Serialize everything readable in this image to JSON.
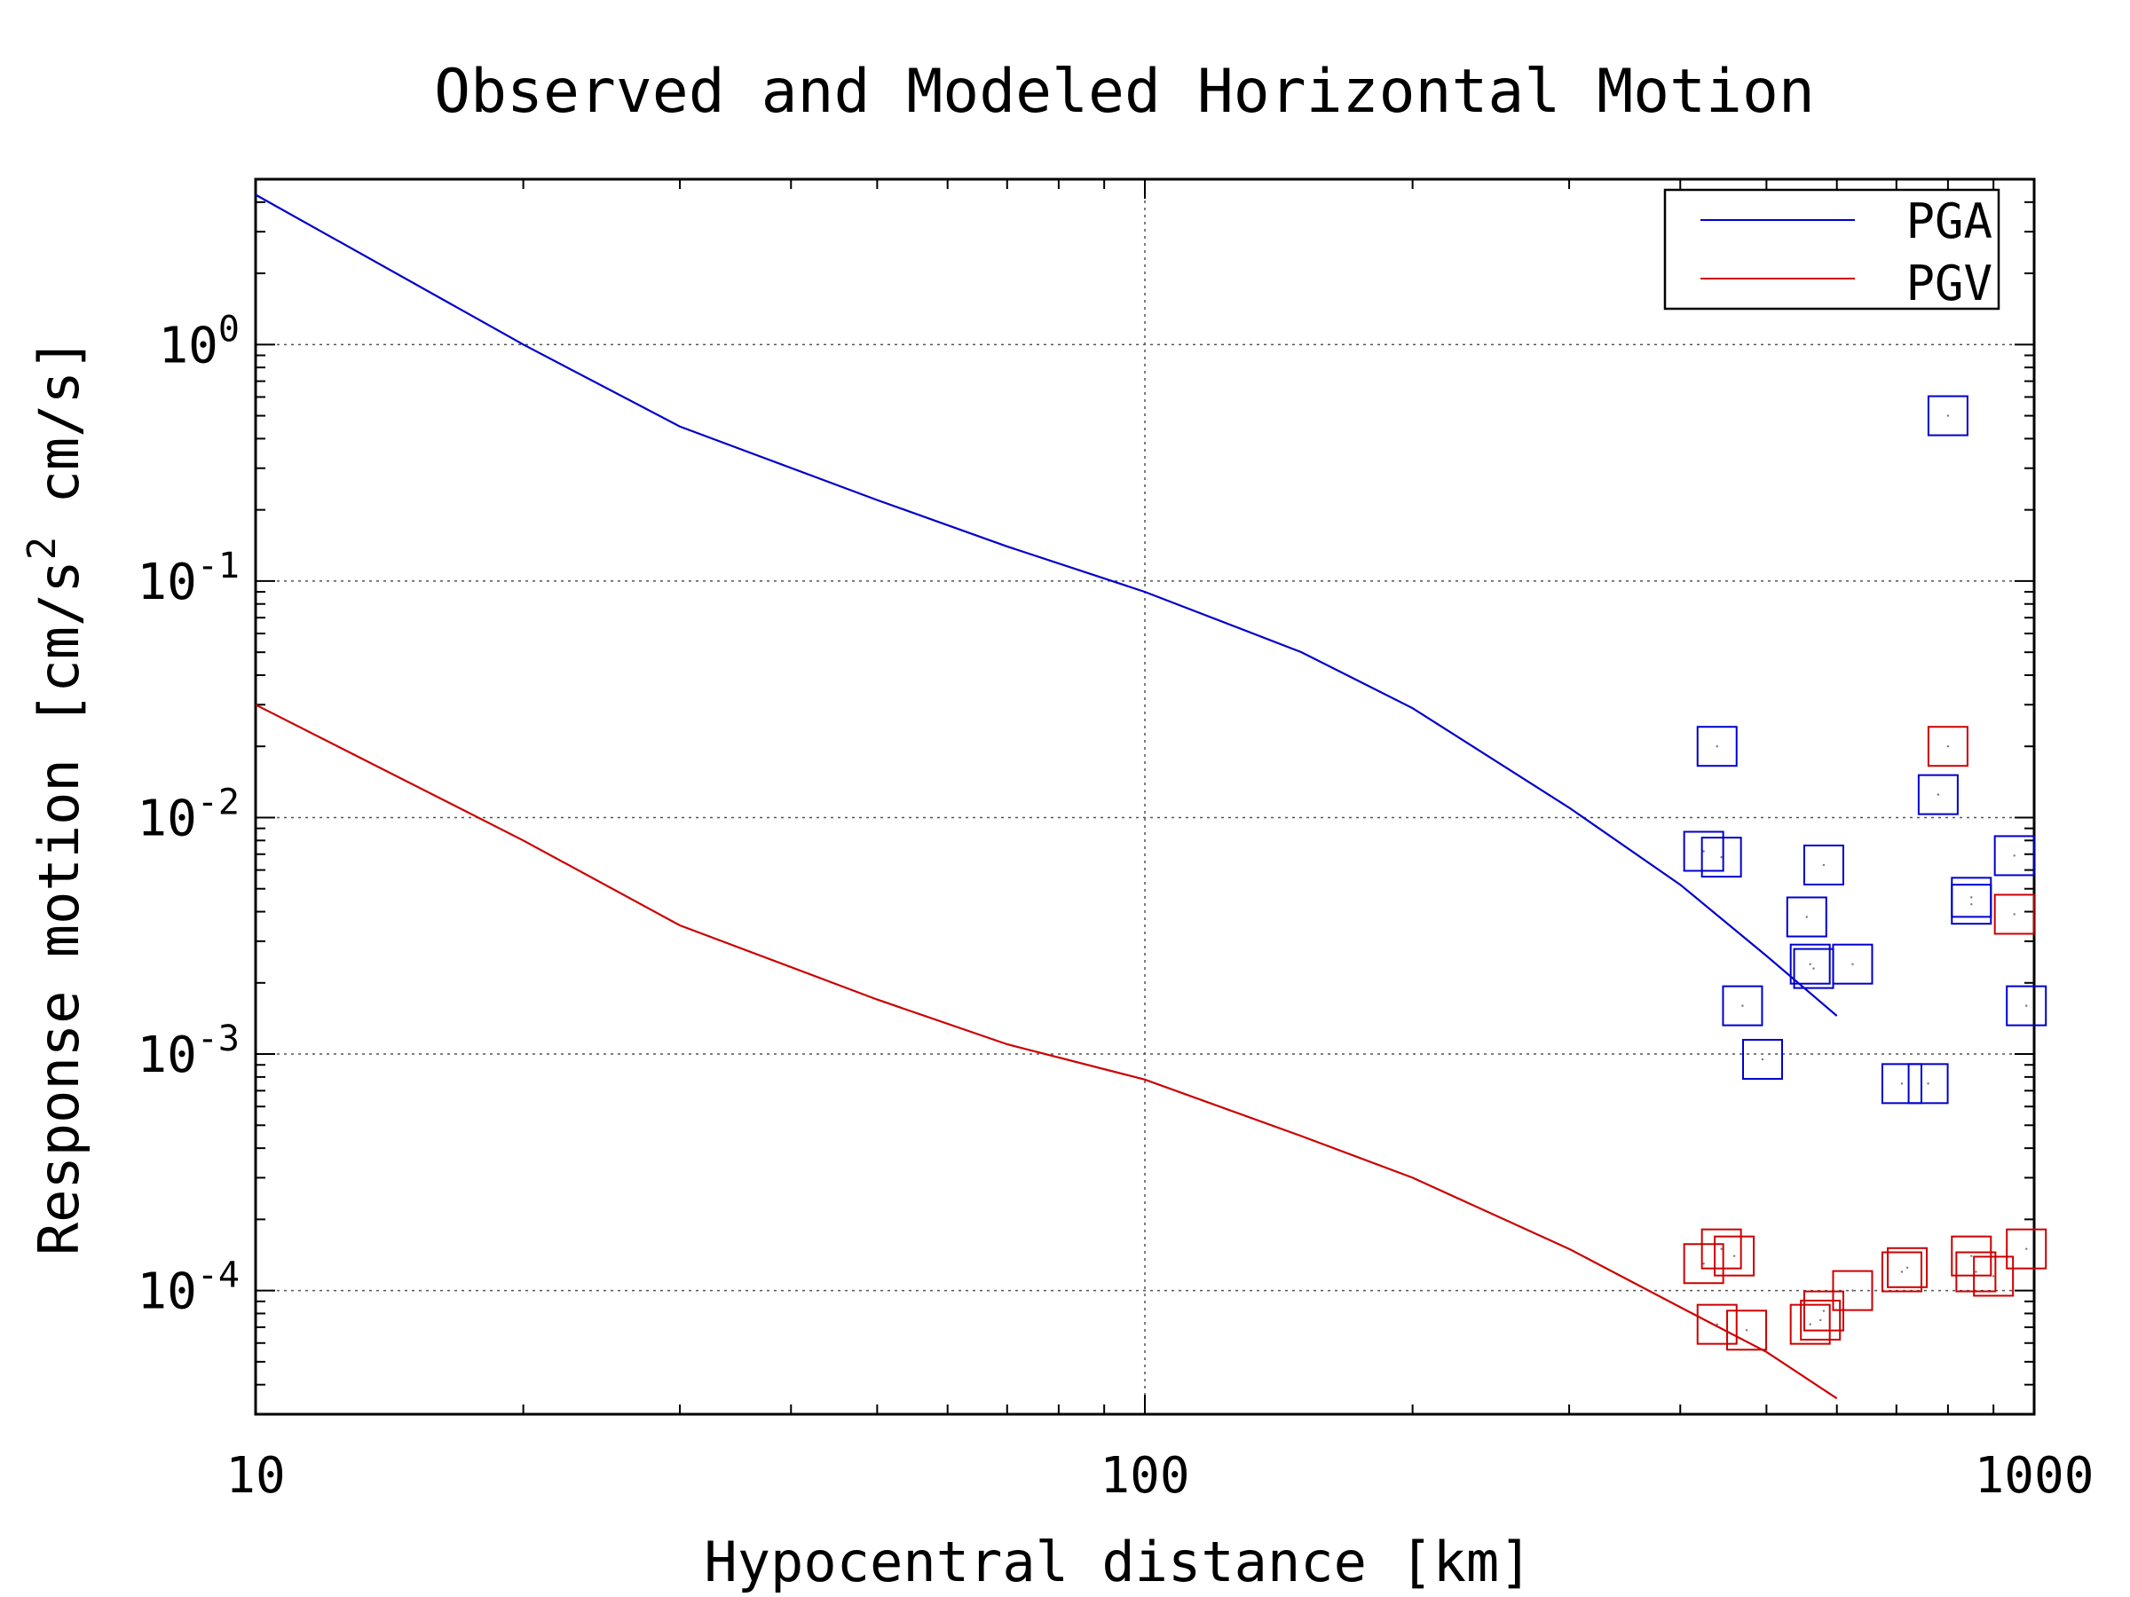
{
  "chart_data": {
    "type": "line",
    "title": "Observed and Modeled Horizontal Motion",
    "xlabel": "Hypocentral distance [km]",
    "ylabel": "Response motion  [cm/s",
    "ylabel_sup": "2",
    "ylabel_tail": "  cm/s]",
    "x_scale": "log",
    "y_scale": "log",
    "xlim": [
      10,
      1000
    ],
    "ylim": [
      3e-05,
      5
    ],
    "x_ticks": [
      {
        "value": 10,
        "label": "10"
      },
      {
        "value": 100,
        "label": "100"
      },
      {
        "value": 1000,
        "label": "1000"
      }
    ],
    "y_ticks": [
      {
        "value": 1,
        "base": "10",
        "exp": "0"
      },
      {
        "value": 0.1,
        "base": "10",
        "exp": "-1"
      },
      {
        "value": 0.01,
        "base": "10",
        "exp": "-2"
      },
      {
        "value": 0.001,
        "base": "10",
        "exp": "-3"
      },
      {
        "value": 0.0001,
        "base": "10",
        "exp": "-4"
      }
    ],
    "grid": true,
    "legend_position": "top-right",
    "series": [
      {
        "name": "PGA",
        "color": "#0000cc",
        "line": {
          "x": [
            10,
            20,
            30,
            50,
            70,
            100,
            150,
            200,
            300,
            400,
            500,
            600
          ],
          "y": [
            4.3,
            1.0,
            0.45,
            0.22,
            0.14,
            0.09,
            0.05,
            0.029,
            0.011,
            0.0052,
            0.0026,
            0.00145
          ]
        },
        "points": {
          "x": [
            425,
            445,
            440,
            800,
            850,
            850,
            950,
            980,
            780,
            580,
            555,
            565,
            560,
            625,
            470,
            495,
            710,
            760
          ],
          "y": [
            0.0072,
            0.0068,
            0.02,
            0.5,
            0.0046,
            0.0043,
            0.0069,
            0.0016,
            0.0125,
            0.0063,
            0.0038,
            0.0023,
            0.0024,
            0.0024,
            0.0016,
            0.00095,
            0.00075,
            0.00075
          ]
        }
      },
      {
        "name": "PGV",
        "color": "#cc0000",
        "line": {
          "x": [
            10,
            20,
            30,
            50,
            70,
            100,
            150,
            200,
            300,
            400,
            500,
            600
          ],
          "y": [
            0.03,
            0.008,
            0.0035,
            0.0017,
            0.0011,
            0.00078,
            0.00045,
            0.0003,
            0.00015,
            8.5e-05,
            5.5e-05,
            3.5e-05
          ]
        },
        "points": {
          "x": [
            800,
            950,
            425,
            475,
            460,
            440,
            445,
            560,
            575,
            580,
            625,
            710,
            720,
            850,
            860,
            900,
            980
          ],
          "y": [
            0.02,
            0.0039,
            0.00013,
            6.8e-05,
            0.00014,
            7.2e-05,
            0.00015,
            7.2e-05,
            7.5e-05,
            8.2e-05,
            0.0001,
            0.00012,
            0.000125,
            0.00014,
            0.00012,
            0.000115,
            0.00015
          ]
        }
      }
    ]
  }
}
